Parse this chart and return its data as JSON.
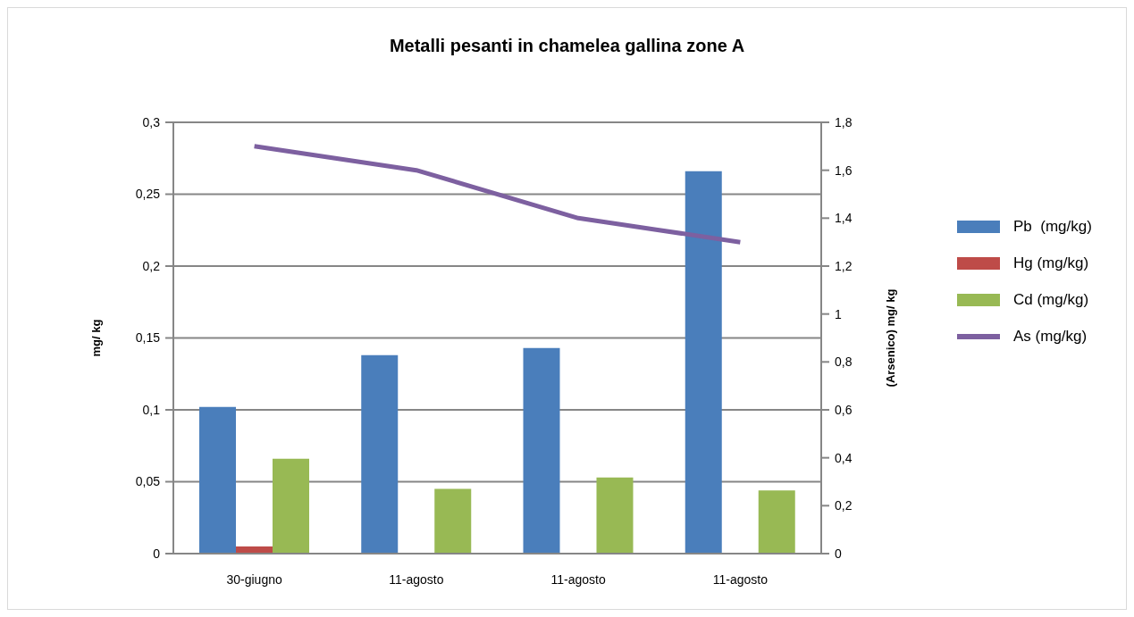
{
  "chart_data": {
    "type": "bar",
    "title": "Metalli pesanti in chamelea gallina zone A",
    "ylabel": "mg/ kg",
    "y2label": "(Arsenico) mg/ kg",
    "categories": [
      "30-giugno",
      "11-agosto",
      "11-agosto",
      "11-agosto"
    ],
    "series": [
      {
        "name": "Pb  (mg/kg)",
        "color": "#4a7ebb",
        "values": [
          0.102,
          0.138,
          0.143,
          0.266
        ]
      },
      {
        "name": "Hg (mg/kg)",
        "color": "#be4b48",
        "values": [
          0.005,
          0.0005,
          0.0005,
          0.0005
        ]
      },
      {
        "name": "Cd (mg/kg)",
        "color": "#98b954",
        "values": [
          0.066,
          0.045,
          0.053,
          0.044
        ]
      },
      {
        "name": "As (mg/kg)",
        "type": "line",
        "axis": "y2",
        "color": "#7d60a0",
        "values": [
          1.7,
          1.6,
          1.4,
          1.3
        ]
      }
    ],
    "ylim": [
      0,
      0.3
    ],
    "yticks": [
      0,
      {
        "value": 0.05,
        "label": "0,05"
      },
      {
        "value": 0.1,
        "label": "0,1"
      },
      {
        "value": 0.15,
        "label": "0,15"
      },
      {
        "value": 0.2,
        "label": "0,2"
      },
      {
        "value": 0.25,
        "label": "0,25"
      },
      {
        "value": 0.3,
        "label": "0,3"
      }
    ],
    "y2lim": [
      0,
      1.8
    ],
    "y2ticks": [
      0,
      {
        "value": 0.2,
        "label": "0,2"
      },
      {
        "value": 0.4,
        "label": "0,4"
      },
      {
        "value": 0.6,
        "label": "0,6"
      },
      {
        "value": 0.8,
        "label": "0,8"
      },
      1,
      {
        "value": 1.2,
        "label": "1,2"
      },
      {
        "value": 1.4,
        "label": "1,4"
      },
      {
        "value": 1.6,
        "label": "1,6"
      },
      {
        "value": 1.8,
        "label": "1,8"
      }
    ],
    "grid": "y",
    "legend": "right",
    "marker": "none"
  }
}
